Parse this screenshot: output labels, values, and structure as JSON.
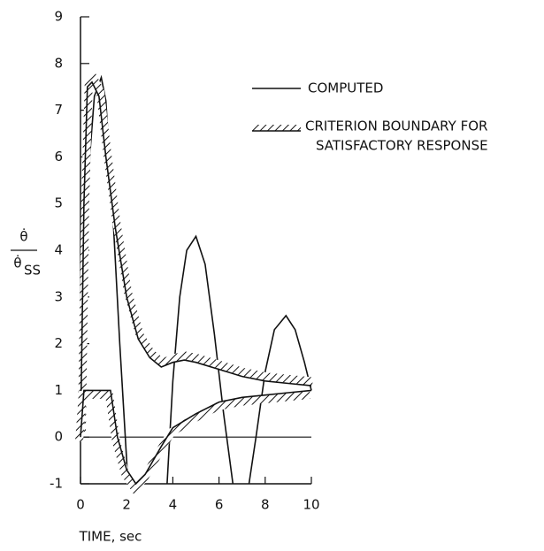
{
  "chart_data": {
    "type": "line",
    "x_label": "TIME, sec",
    "y_label": {
      "numerator": "θ̇",
      "denominator": "θ̇",
      "subscript": "SS"
    },
    "xlim": [
      0,
      10
    ],
    "xticks": [
      0,
      2,
      4,
      6,
      8,
      10
    ],
    "ylim": [
      -1,
      9
    ],
    "yticks": [
      -1,
      0,
      1,
      2,
      3,
      4,
      5,
      6,
      7,
      8,
      9
    ],
    "hline": 0,
    "series": [
      {
        "name": "COMPUTED",
        "color": "#111111",
        "style": "line",
        "x": [
          0,
          0.2,
          0.4,
          0.6,
          0.9,
          1.1,
          1.4,
          1.7,
          2.0,
          2.05,
          null,
          3.75,
          4.0,
          4.3,
          4.6,
          5.0,
          5.4,
          5.8,
          6.2,
          6.6,
          null,
          7.3,
          7.6,
          8.0,
          8.4,
          8.9,
          9.3,
          9.7,
          10
        ],
        "values": [
          0,
          3,
          6,
          7.3,
          7.7,
          7.2,
          4.8,
          2.0,
          -0.5,
          -1,
          null,
          -1,
          1.2,
          3.0,
          4.0,
          4.3,
          3.7,
          2.2,
          0.5,
          -1,
          null,
          -1,
          0.0,
          1.4,
          2.3,
          2.6,
          2.3,
          1.6,
          1.0
        ]
      },
      {
        "name": [
          "CRITERION BOUNDARY FOR",
          "SATISFACTORY RESPONSE"
        ],
        "color": "#111111",
        "style": "hatched-up",
        "x": [
          0,
          0.15,
          0.3,
          0.5,
          0.8,
          1.1,
          1.5,
          2.0,
          2.5,
          3.0,
          3.5,
          4.0,
          4.5,
          5.0,
          6.0,
          7.0,
          8.0,
          9.0,
          10
        ],
        "values": [
          0,
          5.0,
          7.5,
          7.6,
          7.3,
          6.0,
          4.5,
          3.0,
          2.1,
          1.7,
          1.5,
          1.6,
          1.65,
          1.6,
          1.45,
          1.3,
          1.2,
          1.15,
          1.1
        ]
      },
      {
        "color": "#111111",
        "style": "hatched-down",
        "x": [
          0,
          0.15,
          1.3,
          1.6,
          2.0,
          2.4,
          2.8,
          3.5,
          4.0,
          5.0,
          6.0,
          7.0,
          8.0,
          9.0,
          10
        ],
        "values": [
          0,
          1.0,
          1.0,
          0.0,
          -0.7,
          -1.0,
          -0.8,
          -0.2,
          0.2,
          0.5,
          0.75,
          0.85,
          0.9,
          0.95,
          1.0
        ]
      }
    ]
  }
}
